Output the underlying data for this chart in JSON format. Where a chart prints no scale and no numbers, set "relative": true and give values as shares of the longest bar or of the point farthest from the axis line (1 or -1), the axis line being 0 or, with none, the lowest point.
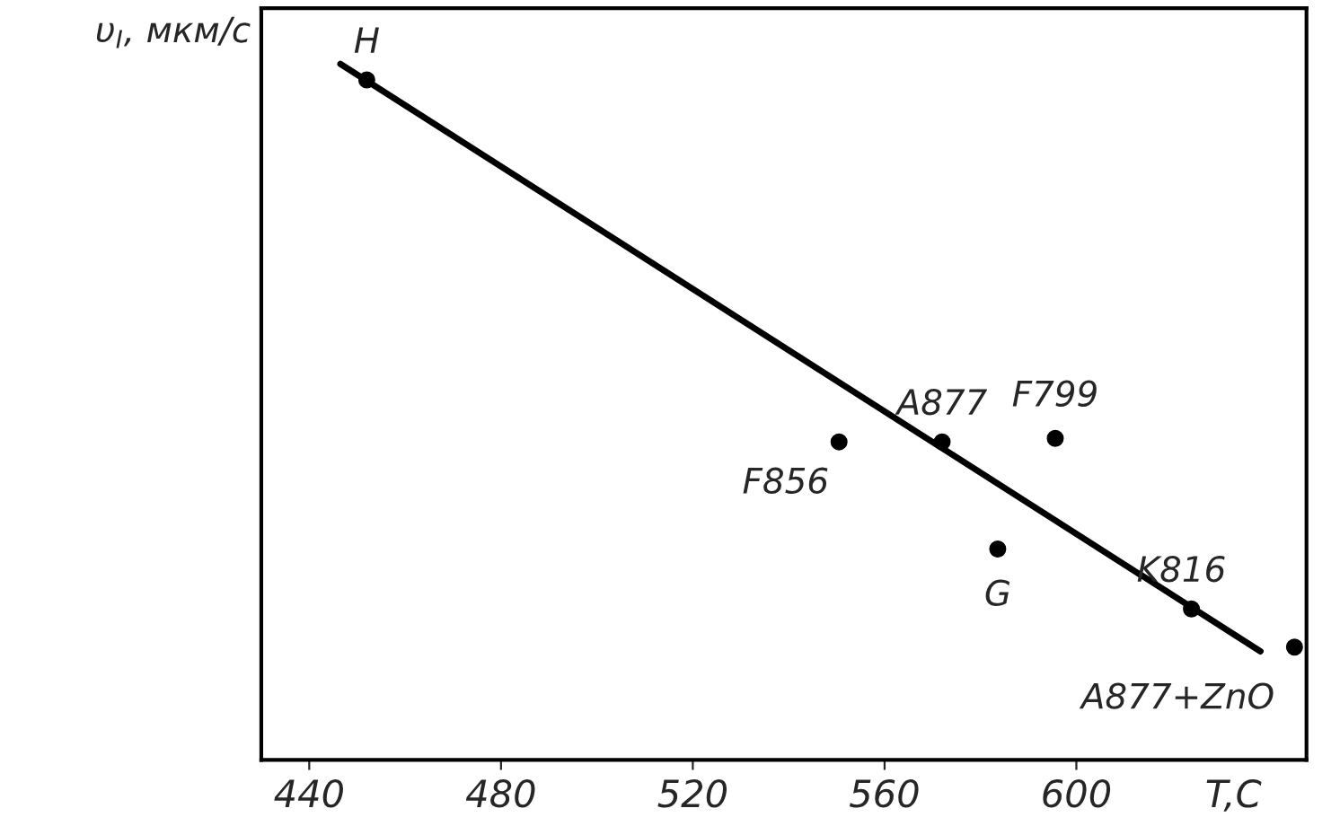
{
  "chart_data": {
    "type": "scatter",
    "xlabel": "T,C",
    "ylabel": "υ$_{I}$, мкм/с",
    "relative": true,
    "tick_labels": "x",
    "grid": false,
    "xlim": [
      430,
      648
    ],
    "xticks": [
      440,
      480,
      520,
      560,
      600
    ],
    "series": [
      {
        "marker": "circle",
        "color": "#000000",
        "x": [
          452,
          550.5,
          572,
          583.6,
          595.6,
          624,
          645.5
        ],
        "values": [
          0.977,
          0.457,
          0.457,
          0.303,
          0.462,
          0.217,
          0.162
        ]
      },
      {
        "type": "line",
        "color": "#000000",
        "line_style": "solid",
        "x": [
          446.5,
          638.4
        ],
        "values": [
          1,
          0.156
        ]
      }
    ],
    "annotations": [
      {
        "text": "H",
        "x": 452,
        "y": 0.977
      },
      {
        "text": "F856",
        "x": 550.5,
        "y": 0.457
      },
      {
        "text": "A877",
        "x": 572,
        "y": 0.457
      },
      {
        "text": "G",
        "x": 583.6,
        "y": 0.303
      },
      {
        "text": "F799",
        "x": 595.6,
        "y": 0.462
      },
      {
        "text": "K816",
        "x": 624,
        "y": 0.217
      },
      {
        "text": "A877+ZnO",
        "x": 645.5,
        "y": 0.162
      }
    ]
  }
}
